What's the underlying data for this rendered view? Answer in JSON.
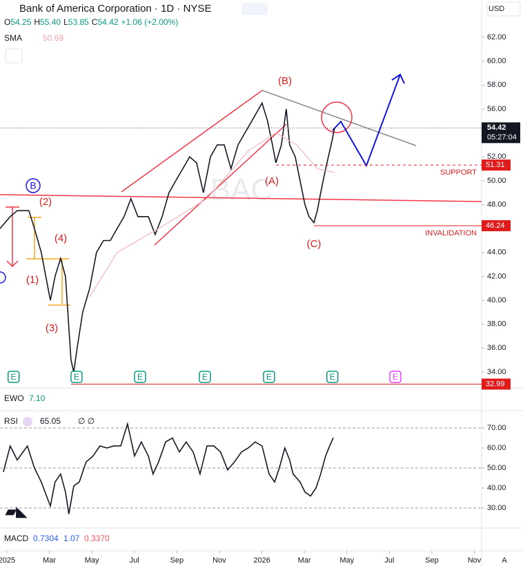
{
  "header": {
    "title": "Bank of America Corporation · 1D · NYSE",
    "ohlc": [
      {
        "label": "O",
        "value": 54.25
      },
      {
        "label": "H",
        "value": 55.4,
        "text": "55.40"
      },
      {
        "label": "L",
        "value": 53.85
      },
      {
        "label": "C",
        "value": 54.42
      }
    ],
    "change": "+1.06 (+2.00%)",
    "currency": "USD",
    "axis_button": "A"
  },
  "indicators": {
    "ewo": {
      "name": "EWO",
      "value": 7.1,
      "label": "7.10"
    },
    "rsi": {
      "name": "RSI",
      "extras": "∅ ∅"
    },
    "macd": {
      "name": "MACD",
      "values": [
        0.7304,
        1.07,
        {
          "value": 0.337,
          "label": "0.3370"
        }
      ]
    }
  },
  "annotations": {
    "waves": [
      "(B)",
      "(A)",
      "(C)",
      "(2)",
      "(4)",
      "(1)",
      "(3)",
      "B"
    ],
    "support": "SUPPORT",
    "invalidation": "INVALIDATION"
  },
  "chart_data": [
    {
      "type": "line",
      "watermark": "BAC",
      "xlim": [
        -0.32,
        22.34
      ],
      "ylim": [
        32.67,
        65.12
      ],
      "xticks": [
        {
          "value": 0,
          "label": "2025"
        },
        {
          "value": 2,
          "label": "Mar"
        },
        {
          "value": 4,
          "label": "May"
        },
        {
          "value": 6,
          "label": "Jul"
        },
        {
          "value": 8,
          "label": "Sep"
        },
        {
          "value": 10,
          "label": "Nov"
        },
        {
          "value": 12,
          "label": "2026"
        },
        {
          "value": 14,
          "label": "Mar"
        },
        {
          "value": 16,
          "label": "May"
        },
        {
          "value": 18,
          "label": "Jul"
        },
        {
          "value": 20,
          "label": "Sep"
        },
        {
          "value": 22,
          "label": "Nov"
        }
      ],
      "yticks": [
        {
          "value": 34,
          "label": "34.00"
        },
        {
          "value": 36,
          "label": "36.00"
        },
        {
          "value": 38,
          "label": "38.00"
        },
        {
          "value": 40,
          "label": "40.00"
        },
        {
          "value": 42,
          "label": "42.00"
        },
        {
          "value": 44,
          "label": "44.00"
        },
        {
          "value": 46,
          "label": "46.00"
        },
        {
          "value": 48,
          "label": "48.00"
        },
        {
          "value": 50,
          "label": "50.00"
        },
        {
          "value": 52,
          "label": "52.00"
        },
        {
          "value": 54,
          "label": "54.00"
        },
        {
          "value": 56,
          "label": "56.00"
        },
        {
          "value": 58,
          "label": "58.00"
        },
        {
          "value": 60,
          "label": "60.00"
        },
        {
          "value": 62,
          "label": "62.00"
        }
      ],
      "series": [
        {
          "name": "BAC",
          "color": "#131722",
          "x": [
            -0.32,
            0.16,
            0.49,
            1.04,
            1.3,
            1.62,
            2.05,
            2.27,
            2.53,
            2.76,
            3.02,
            3.15,
            3.31,
            3.57,
            3.9,
            4.22,
            4.55,
            4.87,
            5.19,
            5.52,
            5.84,
            6.17,
            6.66,
            6.98,
            7.31,
            7.63,
            7.95,
            8.28,
            8.6,
            8.93,
            9.25,
            9.58,
            9.9,
            10.23,
            10.55,
            10.88,
            11.2,
            11.53,
            11.85,
            12.01,
            12.27,
            12.5,
            12.66,
            12.92,
            13.15,
            13.31,
            13.57,
            13.8,
            14.03,
            14.22,
            14.45,
            14.61,
            14.77,
            14.94,
            15.13,
            15.32,
            15.42
          ],
          "values": [
            46,
            47,
            47.5,
            47.5,
            46,
            44,
            40,
            42,
            43.5,
            42,
            35,
            34,
            36,
            39,
            41,
            44,
            45,
            45,
            46,
            47,
            48.5,
            47,
            47,
            45.5,
            47,
            49,
            50,
            51,
            52,
            51.5,
            49,
            52,
            53,
            53,
            51,
            53,
            54,
            55,
            56,
            56.5,
            55,
            53,
            51.5,
            53,
            56,
            53,
            52,
            50,
            48,
            47,
            46.5,
            47.5,
            49,
            50.5,
            52,
            53.5,
            54.42
          ]
        },
        {
          "name": "SMA",
          "value_label": "50.69",
          "color": "#f0b3bd",
          "x": [
            3.9,
            5.19,
            7.14,
            9.42,
            11.36,
            12.66,
            13.64,
            14.61,
            15.42
          ],
          "values": [
            40.3,
            44,
            46,
            48.5,
            52.5,
            54,
            53,
            51,
            50.69
          ]
        }
      ],
      "last_price": 54.42,
      "countdown": "05:27:04",
      "levels": [
        51.31,
        46.24,
        32.99
      ],
      "events": [
        {
          "x": 0.32,
          "label": "E",
          "color": "#089981"
        },
        {
          "x": 3.28,
          "label": "E",
          "color": "#089981"
        },
        {
          "x": 6.27,
          "label": "E",
          "color": "#089981"
        },
        {
          "x": 9.32,
          "label": "E",
          "color": "#089981"
        },
        {
          "x": 12.34,
          "label": "E",
          "color": "#089981"
        },
        {
          "x": 15.32,
          "label": "E",
          "color": "#089981"
        },
        {
          "x": 18.28,
          "label": "E",
          "color": "#e040fb"
        }
      ]
    },
    {
      "type": "line",
      "xlim": [
        -0.32,
        22.34
      ],
      "ylim": [
        20,
        78.6
      ],
      "yticks": [
        {
          "value": 30,
          "label": "30.00"
        },
        {
          "value": 40,
          "label": "40.00"
        },
        {
          "value": 50,
          "label": "50.00"
        },
        {
          "value": 60,
          "label": "60.00"
        },
        {
          "value": 70,
          "label": "70.00"
        }
      ],
      "bands": [
        70,
        50,
        30
      ],
      "series": [
        {
          "name": "RSI",
          "color": "#131722",
          "x": [
            -0.16,
            0.16,
            0.49,
            0.97,
            1.3,
            1.62,
            2.05,
            2.27,
            2.53,
            2.76,
            2.92,
            3.15,
            3.41,
            3.73,
            4.06,
            4.38,
            4.71,
            5.03,
            5.36,
            5.68,
            6.01,
            6.33,
            6.66,
            6.88,
            7.14,
            7.47,
            7.79,
            8.12,
            8.44,
            8.77,
            9.09,
            9.42,
            9.74,
            10.06,
            10.39,
            10.71,
            11.04,
            11.36,
            11.69,
            12.01,
            12.34,
            12.6,
            12.82,
            13.08,
            13.31,
            13.47,
            13.8,
            14.03,
            14.29,
            14.55,
            14.77,
            15,
            15.19,
            15.36
          ],
          "values": [
            48,
            61,
            54,
            61,
            50,
            43,
            31,
            43,
            47,
            38,
            27,
            41,
            43,
            53,
            56,
            61,
            60,
            61,
            61,
            72,
            56,
            63,
            56,
            47,
            53,
            63,
            65,
            58,
            63,
            58,
            47,
            61,
            61,
            58,
            49,
            53,
            58,
            60,
            63,
            61,
            47,
            43,
            50,
            60,
            54,
            47,
            43,
            38,
            36,
            40,
            47,
            56,
            61,
            65.05
          ]
        }
      ]
    }
  ]
}
